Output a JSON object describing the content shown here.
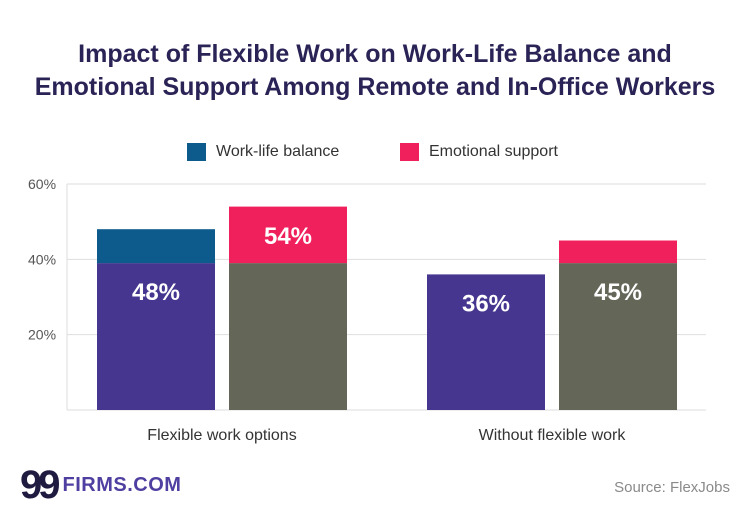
{
  "title_lines": [
    "Impact of Flexible Work on Work-Life Balance and",
    "Emotional Support Among Remote and In-Office Workers"
  ],
  "legend": [
    {
      "label": "Work-life balance",
      "color": "#0d5a8c"
    },
    {
      "label": "Emotional support",
      "color": "#f0205c"
    }
  ],
  "chart_data": {
    "type": "bar",
    "title": "Impact of Flexible Work on Work-Life Balance and Emotional Support Among Remote and In-Office Workers",
    "categories": [
      "Flexible work options",
      "Without flexible work"
    ],
    "series": [
      {
        "name": "Work-life balance",
        "values": [
          48,
          36
        ],
        "labels": [
          "48%",
          "36%"
        ],
        "base_color": "#46368f",
        "top_color": "#0d5a8c"
      },
      {
        "name": "Emotional support",
        "values": [
          54,
          45
        ],
        "labels": [
          "54%",
          "45%"
        ],
        "base_color": "#646757",
        "top_color": "#f0205c"
      }
    ],
    "stack_split": 39,
    "y_ticks": [
      20,
      40,
      60
    ],
    "y_tick_labels": [
      "20%",
      "40%",
      "60%"
    ],
    "ylim": [
      0,
      60
    ],
    "xlabel": "",
    "ylabel": "",
    "grid": true
  },
  "brand": {
    "mark": "99",
    "name": "FIRMS.COM"
  },
  "source": "Source: FlexJobs"
}
